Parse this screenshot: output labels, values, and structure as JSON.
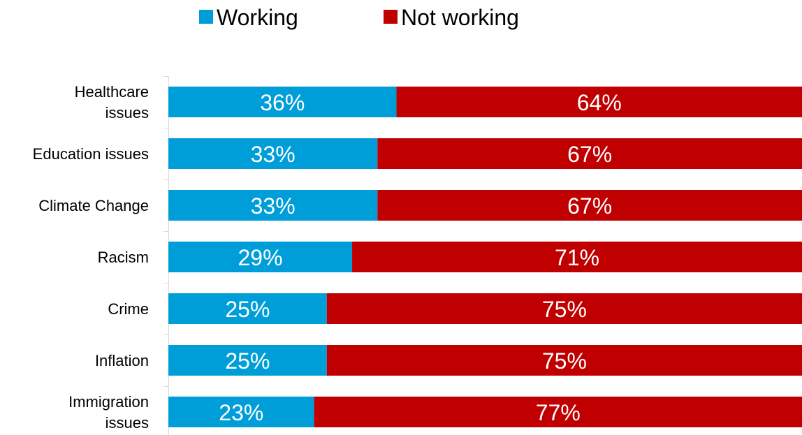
{
  "chart_data": {
    "type": "bar",
    "orientation": "horizontal",
    "stacked": true,
    "value_format": "percent",
    "xlim": [
      0,
      100
    ],
    "grid": false,
    "legend_position": "top",
    "categories": [
      [
        "Healthcare",
        "issues"
      ],
      [
        "Education issues"
      ],
      [
        "Climate Change"
      ],
      [
        "Racism"
      ],
      [
        "Crime"
      ],
      [
        "Inflation"
      ],
      [
        "Immigration",
        "issues"
      ]
    ],
    "series": [
      {
        "name": "Working",
        "color": "#009ed8",
        "values": [
          36,
          33,
          33,
          29,
          25,
          25,
          23
        ]
      },
      {
        "name": "Not working",
        "color": "#c00000",
        "values": [
          64,
          67,
          67,
          71,
          75,
          75,
          77
        ]
      }
    ]
  }
}
